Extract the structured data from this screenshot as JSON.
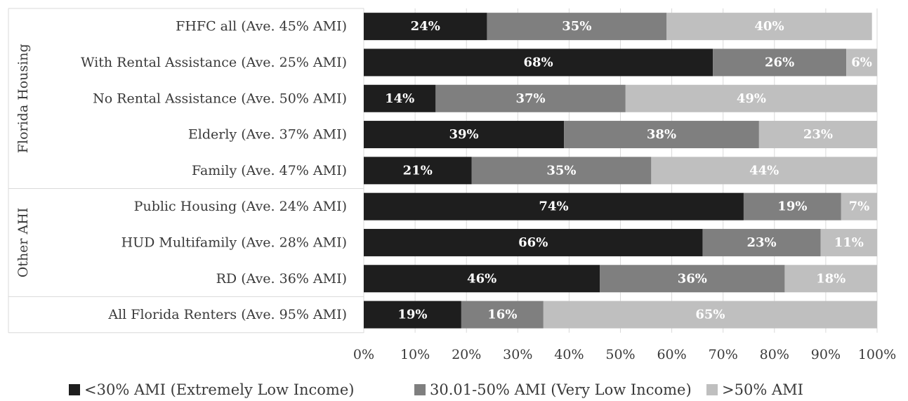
{
  "chart_data": {
    "type": "bar",
    "orientation": "horizontal",
    "stacked": true,
    "categories": [
      "FHFC all (Ave. 45% AMI)",
      "With Rental Assistance (Ave. 25% AMI)",
      "No Rental Assistance (Ave. 50% AMI)",
      "Elderly (Ave. 37% AMI)",
      "Family (Ave. 47% AMI)",
      "Public Housing (Ave. 24% AMI)",
      "HUD Multifamily (Ave. 28% AMI)",
      "RD (Ave. 36% AMI)",
      "All Florida Renters (Ave. 95% AMI)"
    ],
    "groups": [
      {
        "label": "Florida Housing",
        "categories": [
          0,
          1,
          2,
          3,
          4
        ]
      },
      {
        "label": "Other AHI",
        "categories": [
          5,
          6,
          7
        ]
      },
      {
        "label": "",
        "categories": [
          8
        ]
      }
    ],
    "series": [
      {
        "name": "<30% AMI (Extremely Low Income)",
        "color": "#1e1e1e",
        "values": [
          24,
          68,
          14,
          39,
          21,
          74,
          66,
          46,
          19
        ]
      },
      {
        "name": "30.01-50% AMI (Very Low Income)",
        "color": "#7f7f7f",
        "values": [
          35,
          26,
          37,
          38,
          35,
          19,
          23,
          36,
          16
        ]
      },
      {
        "name": ">50% AMI",
        "color": "#bfbfbf",
        "values": [
          40,
          6,
          49,
          23,
          44,
          7,
          11,
          18,
          65
        ]
      }
    ],
    "xlim": [
      0,
      100
    ],
    "xticks": [
      "0%",
      "10%",
      "20%",
      "30%",
      "40%",
      "50%",
      "60%",
      "70%",
      "80%",
      "90%",
      "100%"
    ],
    "value_suffix": "%",
    "grid": true,
    "legend_position": "bottom"
  }
}
